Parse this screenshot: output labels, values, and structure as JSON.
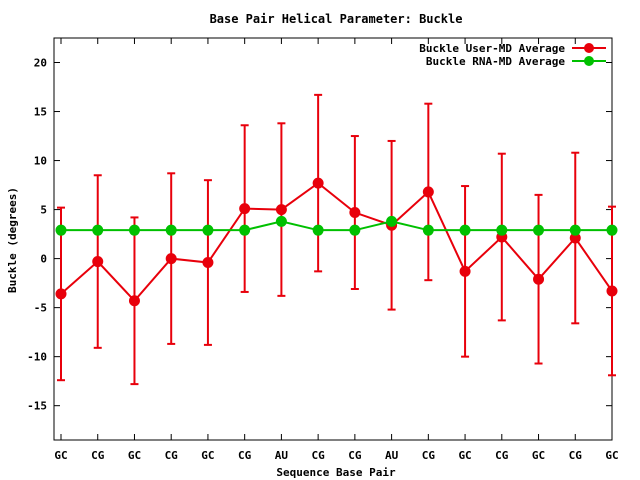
{
  "chart_data": {
    "type": "line",
    "title": "Base Pair Helical Parameter: Buckle",
    "xlabel": "Sequence Base Pair",
    "ylabel": "Buckle (degrees)",
    "categories": [
      "GC",
      "CG",
      "GC",
      "CG",
      "GC",
      "CG",
      "AU",
      "CG",
      "CG",
      "AU",
      "CG",
      "GC",
      "CG",
      "GC",
      "CG",
      "GC"
    ],
    "ylim": [
      -18.5,
      22.5
    ],
    "yticks": [
      -15,
      -10,
      -5,
      0,
      5,
      10,
      15,
      20
    ],
    "grid": false,
    "legend_position": "top-right",
    "series": [
      {
        "name": "Buckle User-MD Average",
        "color": "#e8000b",
        "values": [
          -3.6,
          -0.3,
          -4.3,
          0.0,
          -0.4,
          5.1,
          5.0,
          7.7,
          4.7,
          3.4,
          6.8,
          -1.3,
          2.2,
          -2.1,
          2.1,
          -3.3
        ],
        "error": [
          8.8,
          8.8,
          8.5,
          8.7,
          8.4,
          8.5,
          8.8,
          9.0,
          7.8,
          8.6,
          9.0,
          8.7,
          8.5,
          8.6,
          8.7,
          8.6
        ]
      },
      {
        "name": "Buckle RNA-MD Average",
        "color": "#00c000",
        "values": [
          2.9,
          2.9,
          2.9,
          2.9,
          2.9,
          2.9,
          3.8,
          2.9,
          2.9,
          3.8,
          2.9,
          2.9,
          2.9,
          2.9,
          2.9,
          2.9
        ]
      }
    ]
  }
}
